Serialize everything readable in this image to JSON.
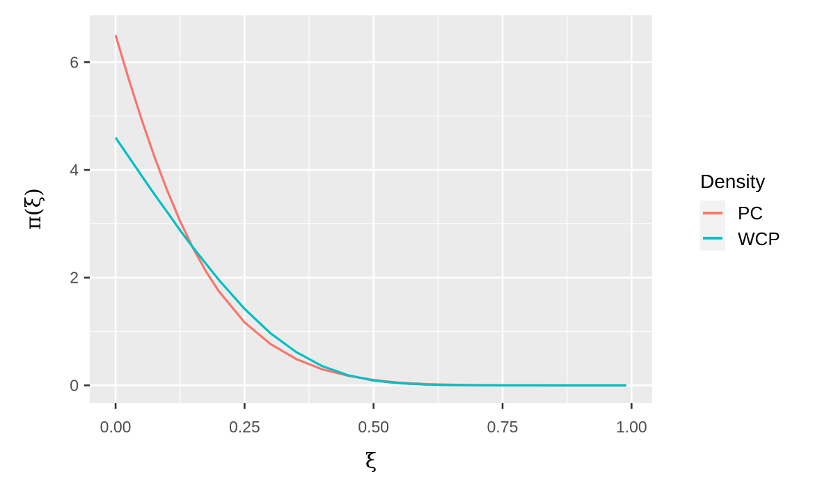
{
  "chart_data": {
    "type": "line",
    "xlabel": "ξ",
    "ylabel": "π(ξ)",
    "xlim": [
      -0.05,
      1.04
    ],
    "ylim": [
      -0.33,
      6.87
    ],
    "x_ticks": [
      0.0,
      0.25,
      0.5,
      0.75,
      1.0
    ],
    "x_tick_labels": [
      "0.00",
      "0.25",
      "0.50",
      "0.75",
      "1.00"
    ],
    "y_ticks": [
      0,
      2,
      4,
      6
    ],
    "y_tick_labels": [
      "0",
      "2",
      "4",
      "6"
    ],
    "grid": true,
    "legend": {
      "title": "Density",
      "position": "right"
    },
    "series": [
      {
        "name": "PC",
        "color": "#F8766D",
        "x": [
          0.0,
          0.025,
          0.05,
          0.075,
          0.1,
          0.125,
          0.15,
          0.175,
          0.2,
          0.25,
          0.3,
          0.35,
          0.4,
          0.45,
          0.5,
          0.55,
          0.6,
          0.65,
          0.7,
          0.75,
          0.8,
          0.85,
          0.9,
          0.95,
          0.99
        ],
        "values": [
          6.5,
          5.7,
          4.95,
          4.25,
          3.62,
          3.05,
          2.55,
          2.12,
          1.75,
          1.17,
          0.77,
          0.49,
          0.3,
          0.18,
          0.1,
          0.05,
          0.025,
          0.012,
          0.005,
          0.002,
          0.001,
          0.0,
          0.0,
          0.0,
          0.0
        ]
      },
      {
        "name": "WCP",
        "color": "#00BFC4",
        "x": [
          0.0,
          0.025,
          0.05,
          0.075,
          0.1,
          0.125,
          0.15,
          0.175,
          0.2,
          0.25,
          0.3,
          0.35,
          0.4,
          0.45,
          0.5,
          0.55,
          0.6,
          0.65,
          0.7,
          0.75,
          0.8,
          0.85,
          0.9,
          0.95,
          0.99
        ],
        "values": [
          4.6,
          4.25,
          3.9,
          3.55,
          3.22,
          2.88,
          2.56,
          2.26,
          1.96,
          1.42,
          0.97,
          0.62,
          0.36,
          0.19,
          0.09,
          0.04,
          0.015,
          0.005,
          0.002,
          0.0,
          0.0,
          0.0,
          0.0,
          0.0,
          0.0
        ]
      }
    ]
  }
}
